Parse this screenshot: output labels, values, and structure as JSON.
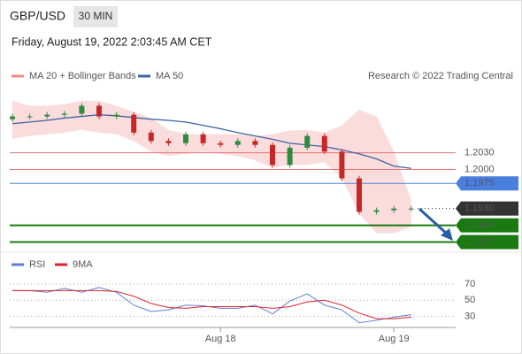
{
  "header": {
    "symbol": "GBP/USD",
    "interval": "30 MIN",
    "datetime": "Friday, August 19, 2022 2:03:45 AM CET"
  },
  "chart_data": [
    {
      "type": "candlestick",
      "source": "Research © 2022 Trading Central",
      "categories": [
        null,
        null,
        null,
        null,
        null,
        null,
        null,
        null,
        null,
        null,
        null,
        null,
        "Aug 18",
        null,
        null,
        null,
        null,
        null,
        null,
        null,
        null,
        null,
        "Aug 19",
        null
      ],
      "open": [
        1.209,
        1.2095,
        1.2095,
        1.2098,
        1.21,
        1.2114,
        1.2095,
        1.2098,
        1.2066,
        1.2051,
        1.2047,
        1.2063,
        1.2047,
        1.2044,
        1.2051,
        1.2044,
        1.2008,
        1.2039,
        1.206,
        1.2032,
        1.1984,
        1.1924,
        1.1927,
        1.193
      ],
      "close": [
        1.2095,
        1.2095,
        1.2098,
        1.21,
        1.2114,
        1.2095,
        1.2098,
        1.2066,
        1.2051,
        1.2047,
        1.2063,
        1.2047,
        1.2044,
        1.2051,
        1.2044,
        1.2008,
        1.2039,
        1.206,
        1.2032,
        1.1984,
        1.1924,
        1.1927,
        1.193,
        1.193
      ],
      "up_color": "#2e8b3e",
      "down_color": "#c62828",
      "series": [
        {
          "name": "MA 20 + Bollinger Bands",
          "color": "#f08a8a",
          "upper": [
            1.2123,
            1.2114,
            1.2114,
            1.2117,
            1.2123,
            1.2123,
            1.2114,
            1.2103,
            1.2092,
            1.2071,
            1.2063,
            1.2063,
            1.2063,
            1.2063,
            1.206,
            1.2063,
            1.207,
            1.2071,
            1.2066,
            1.2079,
            1.2107,
            1.2095,
            1.2032,
            1.1945
          ],
          "lower": [
            1.2055,
            1.206,
            1.2063,
            1.2066,
            1.2071,
            1.2066,
            1.2063,
            1.2051,
            1.2032,
            1.2024,
            1.2028,
            1.2032,
            1.2028,
            1.2024,
            1.2016,
            1.2003,
            1.2008,
            1.2008,
            1.2013,
            1.1984,
            1.1921,
            1.1886,
            1.1886,
            1.1897
          ]
        },
        {
          "name": "MA 50",
          "color": "#3f63a3",
          "values": [
            1.2082,
            1.2085,
            1.2088,
            1.2092,
            1.2095,
            1.2098,
            1.2096,
            1.2093,
            1.209,
            1.2088,
            1.2085,
            1.2079,
            1.2073,
            1.2066,
            1.206,
            1.2054,
            1.2047,
            1.2044,
            1.2041,
            1.2035,
            1.2028,
            1.2019,
            1.2006,
            1.2002
          ]
        }
      ],
      "levels": [
        {
          "value": 1.203,
          "label": "1.2030",
          "color": "#e57373",
          "style": "text"
        },
        {
          "value": 1.2,
          "label": "1.2000",
          "color": "#e57373",
          "style": "text"
        },
        {
          "value": 1.1975,
          "label": "1.1975",
          "color": "#4a7fe0",
          "style": "box"
        },
        {
          "value": 1.193,
          "label": "1.1930",
          "color": "#333333",
          "style": "last"
        },
        {
          "value": 1.19,
          "label": "1.1900",
          "color": "#1a7a12",
          "style": "box"
        },
        {
          "value": 1.187,
          "label": "1.1870",
          "color": "#1a7a12",
          "style": "box"
        }
      ],
      "ylim": [
        1.1855,
        1.2145
      ]
    },
    {
      "type": "line",
      "series": [
        {
          "name": "RSI",
          "color": "#5b7fd6",
          "values": [
            62,
            62,
            60,
            65,
            60,
            66,
            60,
            44,
            36,
            38,
            44,
            43,
            40,
            40,
            44,
            33,
            49,
            58,
            44,
            38,
            22,
            25,
            29,
            32
          ]
        },
        {
          "name": "9MA",
          "color": "#e0202a",
          "values": [
            62,
            62,
            62,
            62,
            62,
            62,
            61,
            55,
            46,
            41,
            40,
            42,
            42,
            42,
            42,
            40,
            42,
            48,
            50,
            44,
            34,
            27,
            27,
            29
          ]
        }
      ],
      "ylim": [
        15,
        100
      ],
      "yticks": [
        70,
        50,
        30
      ],
      "grid": true
    }
  ]
}
